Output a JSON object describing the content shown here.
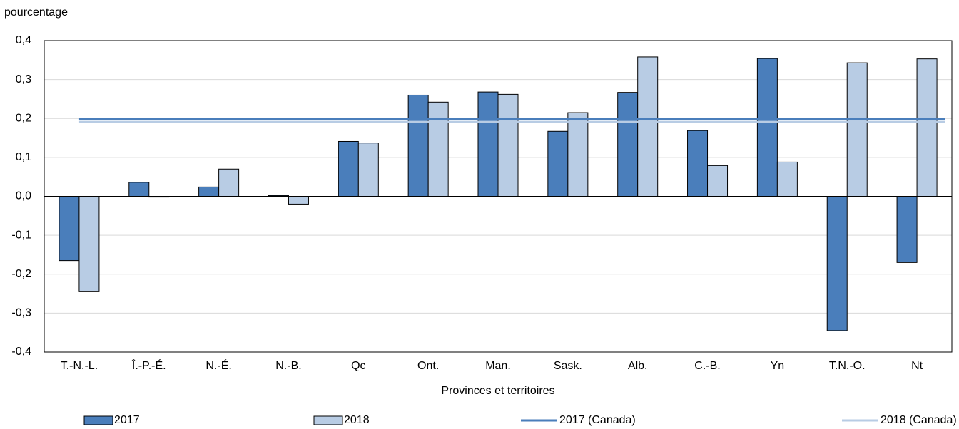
{
  "chart_data": {
    "type": "bar",
    "y_axis_label": "pourcentage",
    "x_axis_label": "Provinces et territoires",
    "categories": [
      "T.-N.-L.",
      "Î.-P.-É.",
      "N.-É.",
      "N.-B.",
      "Qc",
      "Ont.",
      "Man.",
      "Sask.",
      "Alb.",
      "C.-B.",
      "Yn",
      "T.N.-O.",
      "Nt"
    ],
    "series": [
      {
        "name": "2017",
        "color": "#4a7ebb",
        "values": [
          -0.165,
          0.036,
          0.024,
          0.002,
          0.141,
          0.26,
          0.268,
          0.167,
          0.267,
          0.169,
          0.354,
          -0.345,
          -0.17
        ]
      },
      {
        "name": "2018",
        "color": "#b8cce4",
        "values": [
          -0.245,
          -0.002,
          0.07,
          -0.02,
          0.137,
          0.242,
          0.262,
          0.215,
          0.358,
          0.079,
          0.088,
          0.343,
          0.353
        ]
      }
    ],
    "reference_lines": [
      {
        "name": "2017 (Canada)",
        "color": "#4a7ebb",
        "value": 0.198
      },
      {
        "name": "2018 (Canada)",
        "color": "#b8cce4",
        "value": 0.191
      }
    ],
    "ylim": [
      -0.4,
      0.4
    ],
    "yticks": [
      {
        "value": -0.4,
        "label": "-0,4"
      },
      {
        "value": -0.3,
        "label": "-0,3"
      },
      {
        "value": -0.2,
        "label": "-0,2"
      },
      {
        "value": -0.1,
        "label": "-0,1"
      },
      {
        "value": 0,
        "label": "0,0"
      },
      {
        "value": 0.1,
        "label": "0,1"
      },
      {
        "value": 0.2,
        "label": "0,2"
      },
      {
        "value": 0.3,
        "label": "0,3"
      },
      {
        "value": 0.4,
        "label": "0,4"
      }
    ],
    "grid": true
  }
}
